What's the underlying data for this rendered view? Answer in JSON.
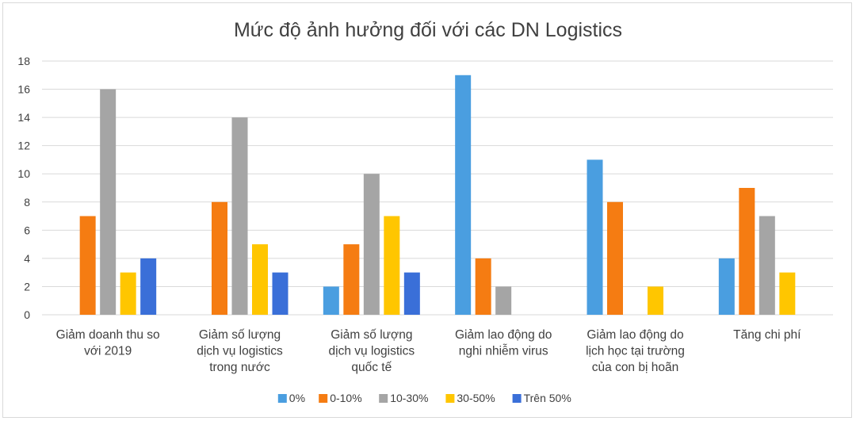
{
  "chart_data": {
    "type": "bar",
    "title": "Mức độ ảnh hưởng đối với các DN Logistics",
    "xlabel": "",
    "ylabel": "",
    "ylim": [
      0,
      18
    ],
    "yticks": [
      0,
      2,
      4,
      6,
      8,
      10,
      12,
      14,
      16,
      18
    ],
    "grid": true,
    "legend_position": "bottom",
    "categories": [
      [
        "Giảm doanh thu so",
        "với 2019"
      ],
      [
        "Giảm số lượng",
        "dịch vụ logistics",
        "trong nước"
      ],
      [
        "Giảm số lượng",
        "dịch vụ logistics",
        "quốc tế"
      ],
      [
        "Giảm lao động do",
        "nghi nhiễm virus"
      ],
      [
        "Giảm lao động do",
        "lịch học tại trường",
        "của con bị hoãn"
      ],
      [
        "Tăng chi phí"
      ]
    ],
    "series": [
      {
        "name": "0%",
        "color": "#4a9ee0",
        "values": [
          0,
          0,
          2,
          17,
          11,
          4
        ]
      },
      {
        "name": "0-10%",
        "color": "#f57c12",
        "values": [
          7,
          8,
          5,
          4,
          8,
          9
        ]
      },
      {
        "name": "10-30%",
        "color": "#a5a5a5",
        "values": [
          16,
          14,
          10,
          2,
          0,
          7
        ]
      },
      {
        "name": "30-50%",
        "color": "#ffc600",
        "values": [
          3,
          5,
          7,
          0,
          2,
          3
        ]
      },
      {
        "name": "Trên 50%",
        "color": "#3a6fd8",
        "values": [
          4,
          3,
          3,
          0,
          0,
          0
        ]
      }
    ]
  }
}
